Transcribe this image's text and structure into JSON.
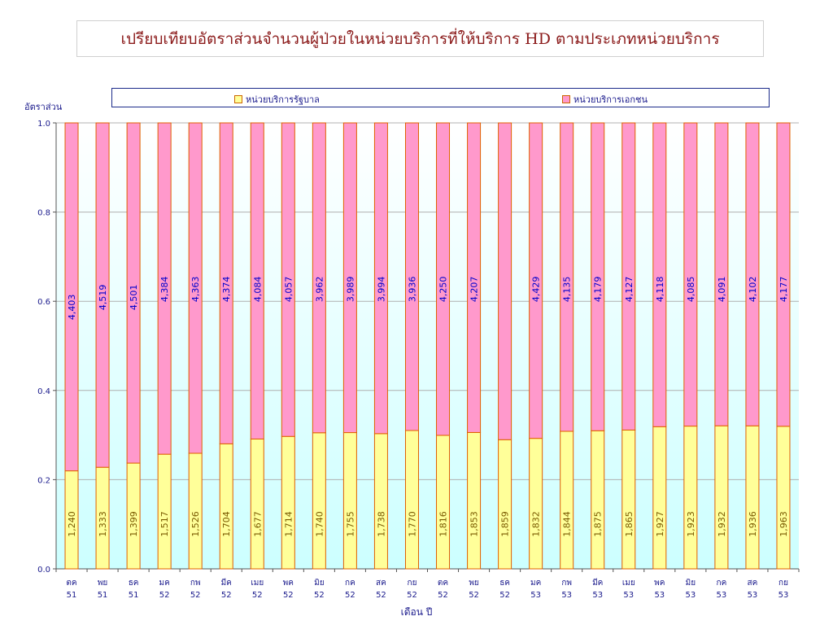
{
  "title": "เปรียบเทียบอัตราส่วนจำนวนผู้ป่วยในหน่วยบริการที่ให้บริการ HD ตามประเภทหน่วยบริการ",
  "colors": {
    "government": "#ffff99",
    "private": "#ff99cc",
    "plot_bg": "#ccffff",
    "bar_edge": "#e06000",
    "text": "#1a1a8c",
    "gov_label": "#7a5a00",
    "priv_label": "#0000cc"
  },
  "chart_data": {
    "type": "bar",
    "stacked": true,
    "normalized": true,
    "title": "เปรียบเทียบอัตราส่วนจำนวนผู้ป่วยในหน่วยบริการที่ให้บริการ HD ตามประเภทหน่วยบริการ",
    "ylabel": "อัตราส่วน",
    "xlabel": "เดือน  ปี",
    "ylim": [
      0,
      1
    ],
    "yticks": [
      "0.0",
      "0.2",
      "0.4",
      "0.6",
      "0.8",
      "1.0"
    ],
    "legend_position": "top",
    "categories": [
      [
        "ตค",
        "51"
      ],
      [
        "พย",
        "51"
      ],
      [
        "ธค",
        "51"
      ],
      [
        "มค",
        "52"
      ],
      [
        "กพ",
        "52"
      ],
      [
        "มีค",
        "52"
      ],
      [
        "เมย",
        "52"
      ],
      [
        "พค",
        "52"
      ],
      [
        "มิย",
        "52"
      ],
      [
        "กค",
        "52"
      ],
      [
        "สค",
        "52"
      ],
      [
        "กย",
        "52"
      ],
      [
        "ตค",
        "52"
      ],
      [
        "พย",
        "52"
      ],
      [
        "ธค",
        "52"
      ],
      [
        "มค",
        "53"
      ],
      [
        "กพ",
        "53"
      ],
      [
        "มีค",
        "53"
      ],
      [
        "เมย",
        "53"
      ],
      [
        "พค",
        "53"
      ],
      [
        "มิย",
        "53"
      ],
      [
        "กค",
        "53"
      ],
      [
        "สค",
        "53"
      ],
      [
        "กย",
        "53"
      ]
    ],
    "series": [
      {
        "name": "หน่วยบริการรัฐบาล",
        "values": [
          1240,
          1333,
          1399,
          1517,
          1526,
          1704,
          1677,
          1714,
          1740,
          1755,
          1738,
          1770,
          1816,
          1853,
          1859,
          1832,
          1844,
          1875,
          1865,
          1927,
          1923,
          1932,
          1936,
          1963
        ],
        "labels": [
          "1,240",
          "1,333",
          "1,399",
          "1,517",
          "1,526",
          "1,704",
          "1,677",
          "1,714",
          "1,740",
          "1,755",
          "1,738",
          "1,770",
          "1,816",
          "1,853",
          "1,859",
          "1,832",
          "1,844",
          "1,875",
          "1,865",
          "1,927",
          "1,923",
          "1,932",
          "1,936",
          "1,963"
        ]
      },
      {
        "name": "หน่วยบริการเอกชน",
        "values": [
          4403,
          4519,
          4501,
          4384,
          4363,
          4374,
          4084,
          4057,
          3962,
          3989,
          3994,
          3936,
          4250,
          4207,
          4560,
          4429,
          4135,
          4179,
          4127,
          4118,
          4085,
          4091,
          4102,
          4177
        ],
        "labels": [
          "4,403",
          "4,519",
          "4,501",
          "4,384",
          "4,363",
          "4,374",
          "4,084",
          "4,057",
          "3,962",
          "3,989",
          "3,994",
          "3,936",
          "4,250",
          "4,207",
          "",
          "4,429",
          "4,135",
          "4,179",
          "4,127",
          "4,118",
          "4,085",
          "4,091",
          "4,102",
          "4,177"
        ]
      }
    ]
  }
}
